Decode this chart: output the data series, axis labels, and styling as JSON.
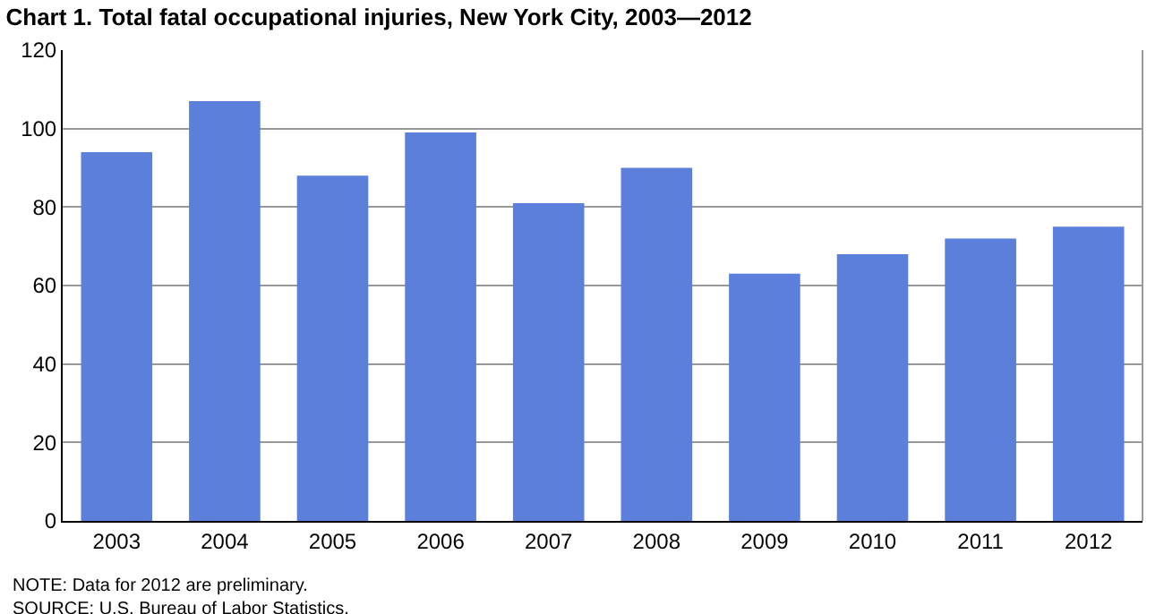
{
  "chart_data": {
    "type": "bar",
    "title": "Chart 1. Total fatal occupational injuries, New York City, 2003—2012",
    "categories": [
      "2003",
      "2004",
      "2005",
      "2006",
      "2007",
      "2008",
      "2009",
      "2010",
      "2011",
      "2012"
    ],
    "values": [
      94,
      107,
      88,
      99,
      81,
      90,
      63,
      68,
      72,
      75
    ],
    "color": "#5b7fdb",
    "ylim": [
      0,
      120
    ],
    "yticks": [
      0,
      20,
      40,
      60,
      80,
      100,
      120
    ],
    "grid": "y",
    "annotations": [
      "NOTE: Data for 2012 are preliminary.",
      "SOURCE: U.S. Bureau of Labor Statistics."
    ]
  }
}
